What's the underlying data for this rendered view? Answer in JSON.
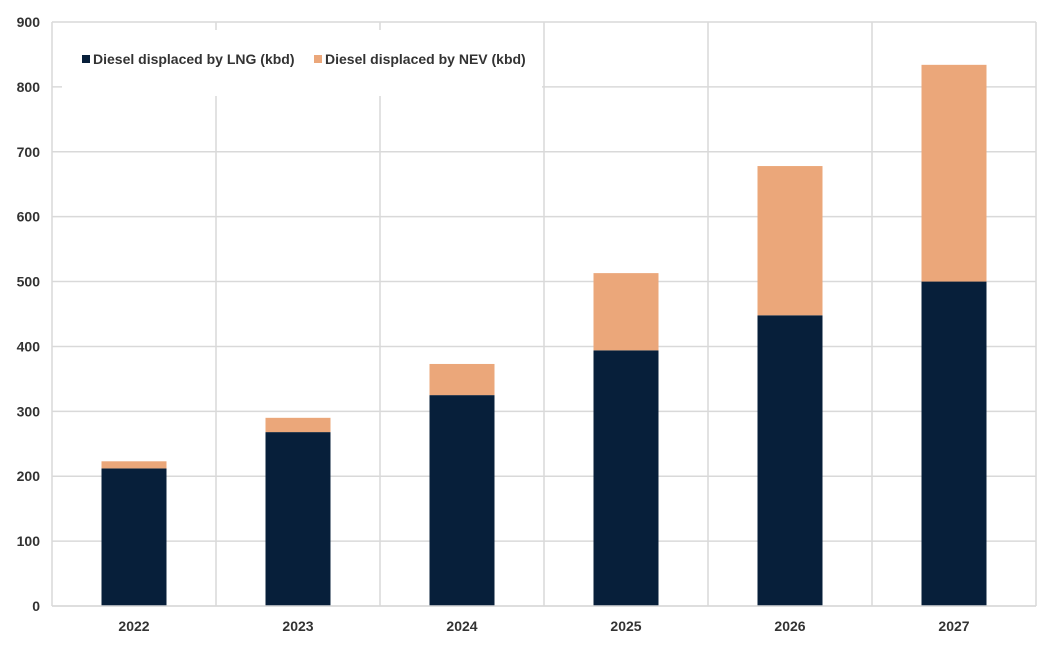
{
  "chart_data": {
    "type": "bar",
    "stacked": true,
    "categories": [
      "2022",
      "2023",
      "2024",
      "2025",
      "2026",
      "2027"
    ],
    "series": [
      {
        "name": "Diesel displaced by LNG (kbd)",
        "color": "#071f3a",
        "values": [
          212,
          268,
          325,
          394,
          448,
          500
        ]
      },
      {
        "name": "Diesel displaced by NEV (kbd)",
        "color": "#eba77a",
        "values": [
          11,
          22,
          48,
          119,
          230,
          334
        ]
      }
    ],
    "ylim": [
      0,
      900
    ],
    "yticks": [
      0,
      100,
      200,
      300,
      400,
      500,
      600,
      700,
      800,
      900
    ],
    "title": "",
    "xlabel": "",
    "ylabel": "",
    "grid": true,
    "legend_position": "top-left"
  }
}
